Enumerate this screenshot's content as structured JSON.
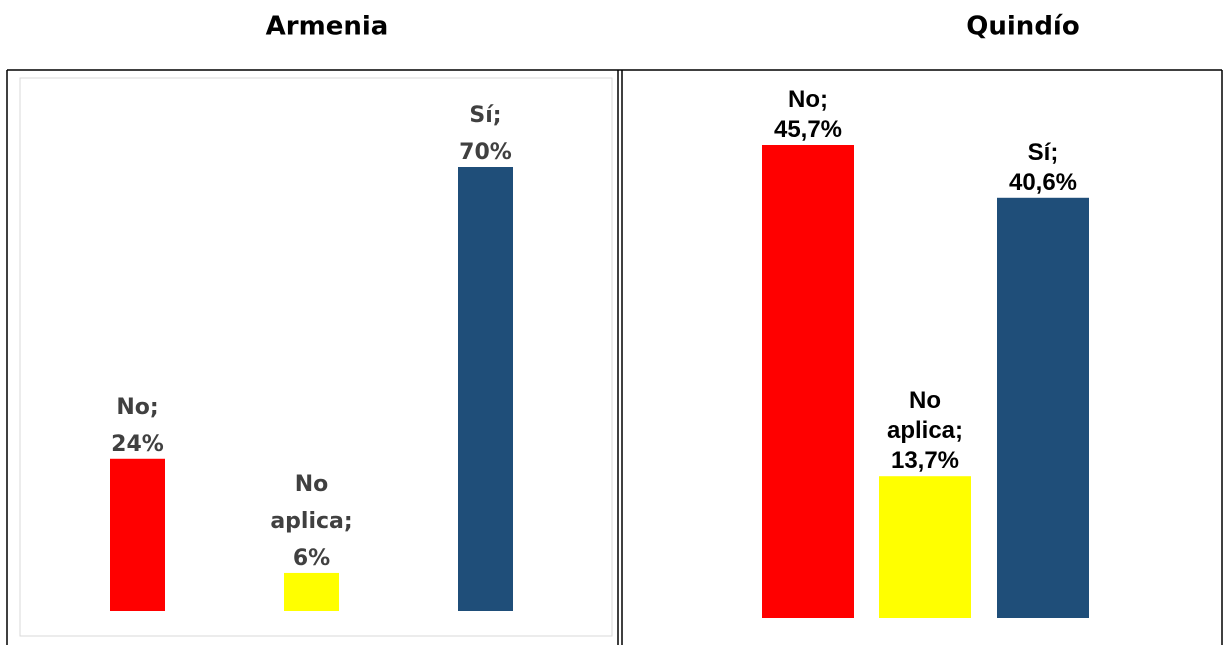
{
  "chart_data": [
    {
      "type": "bar",
      "title": "Armenia",
      "categories": [
        "No",
        "No aplica",
        "Sí"
      ],
      "values": [
        24,
        6,
        70
      ],
      "value_labels": [
        "No; 24%",
        "No aplica; 6%",
        "Sí; 70%"
      ],
      "colors": [
        "#ff0000",
        "#ffff00",
        "#1f4e79"
      ]
    },
    {
      "type": "bar",
      "title": "Quindío",
      "categories": [
        "No",
        "No aplica",
        "Sí"
      ],
      "values": [
        45.7,
        13.7,
        40.6
      ],
      "value_labels": [
        "No; 45,7%",
        "No aplica; 13,7%",
        "Sí; 40,6%"
      ],
      "colors": [
        "#ff0000",
        "#ffff00",
        "#1f4e79"
      ]
    }
  ]
}
